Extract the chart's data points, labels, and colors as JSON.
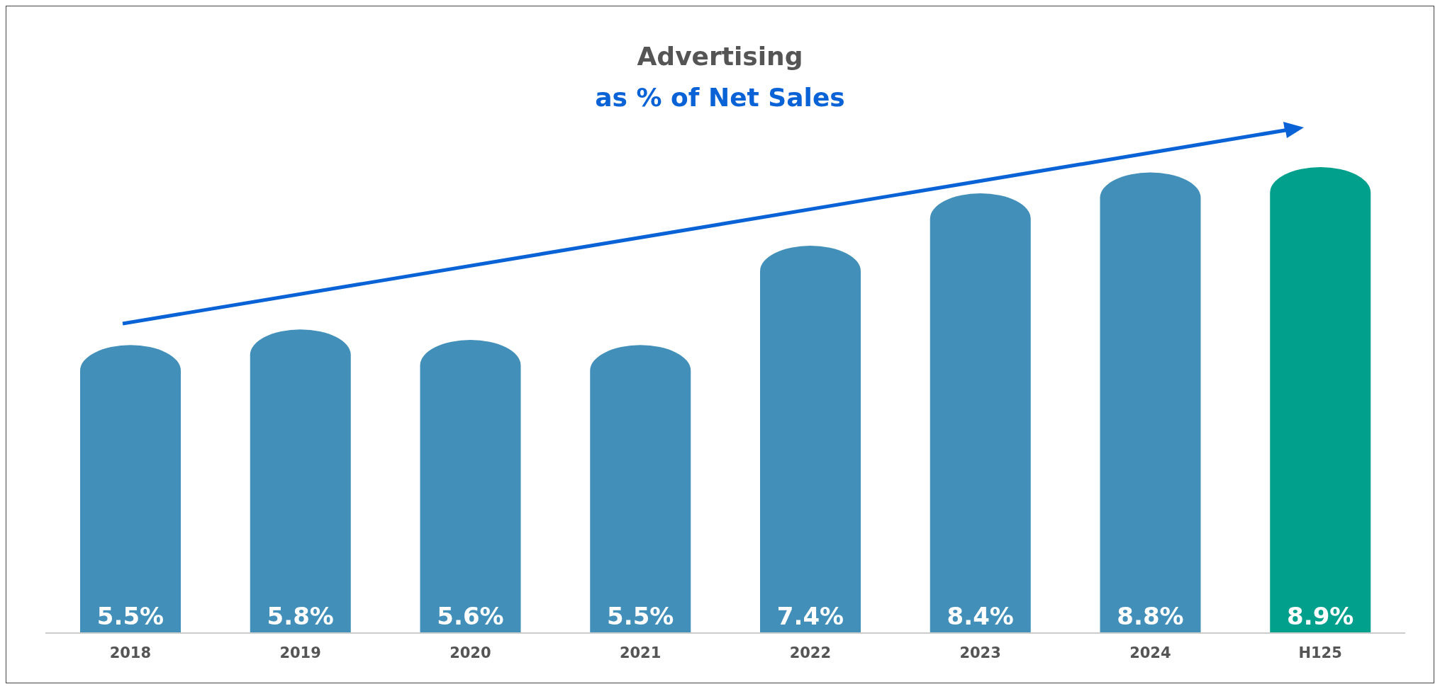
{
  "chart_data": {
    "type": "bar",
    "title": "Advertising",
    "subtitle": "as % of Net Sales",
    "categories": [
      "2018",
      "2019",
      "2020",
      "2021",
      "2022",
      "2023",
      "2024",
      "H125"
    ],
    "values": [
      5.5,
      5.8,
      5.6,
      5.5,
      7.4,
      8.4,
      8.8,
      8.9
    ],
    "colors": [
      "#428fba",
      "#428fba",
      "#428fba",
      "#428fba",
      "#428fba",
      "#428fba",
      "#428fba",
      "#00a08c"
    ],
    "value_labels": [
      "5.5%",
      "5.8%",
      "5.6%",
      "5.5%",
      "7.4%",
      "8.4%",
      "8.8%",
      "8.9%"
    ]
  }
}
